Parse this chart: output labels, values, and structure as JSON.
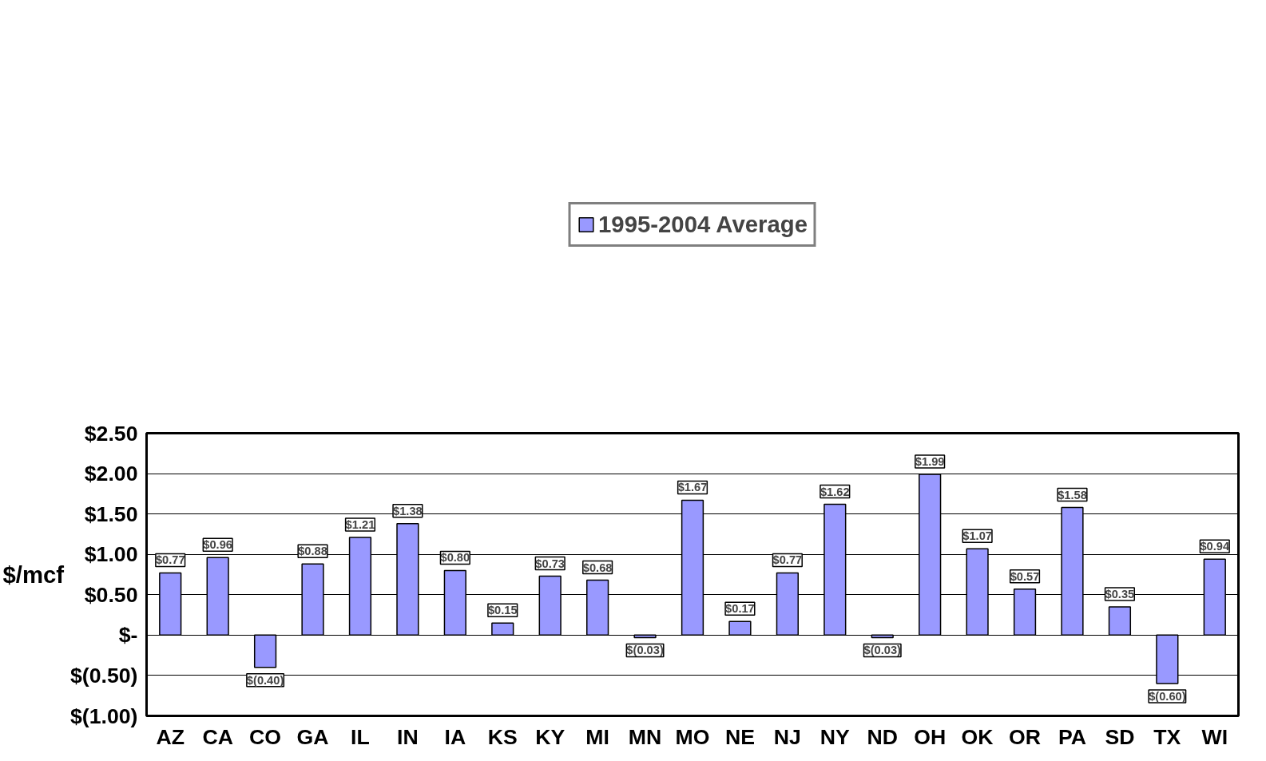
{
  "chart_data": {
    "type": "bar",
    "ylabel": "$/mcf",
    "categories": [
      "AZ",
      "CA",
      "CO",
      "GA",
      "IL",
      "IN",
      "IA",
      "KS",
      "KY",
      "MI",
      "MN",
      "MO",
      "NE",
      "NJ",
      "NY",
      "ND",
      "OH",
      "OK",
      "OR",
      "PA",
      "SD",
      "TX",
      "WI"
    ],
    "series": [
      {
        "name": "1995-2004 Average",
        "color": "#9999ff",
        "values": [
          0.77,
          0.96,
          -0.4,
          0.88,
          1.21,
          1.38,
          0.8,
          0.15,
          0.73,
          0.68,
          -0.03,
          1.67,
          0.17,
          0.77,
          1.62,
          -0.03,
          1.99,
          1.07,
          0.57,
          1.58,
          0.35,
          -0.6,
          0.94
        ],
        "value_labels": [
          "$0.77",
          "$0.96",
          "$(0.40)",
          "$0.88",
          "$1.21",
          "$1.38",
          "$0.80",
          "$0.15",
          "$0.73",
          "$0.68",
          "$(0.03)",
          "$1.67",
          "$0.17",
          "$0.77",
          "$1.62",
          "$(0.03)",
          "$1.99",
          "$1.07",
          "$0.57",
          "$1.58",
          "$0.35",
          "$(0.60)",
          "$0.94"
        ]
      }
    ],
    "ylim": [
      -1.0,
      2.5
    ],
    "yticks": [
      {
        "value": -1.0,
        "label": "$(1.00)"
      },
      {
        "value": -0.5,
        "label": "$(0.50)"
      },
      {
        "value": 0,
        "label": "$-"
      },
      {
        "value": 0.5,
        "label": "$0.50"
      },
      {
        "value": 1.0,
        "label": "$1.00"
      },
      {
        "value": 1.5,
        "label": "$1.50"
      },
      {
        "value": 2.0,
        "label": "$2.00"
      },
      {
        "value": 2.5,
        "label": "$2.50"
      }
    ],
    "grid": "y",
    "legend": "top"
  }
}
